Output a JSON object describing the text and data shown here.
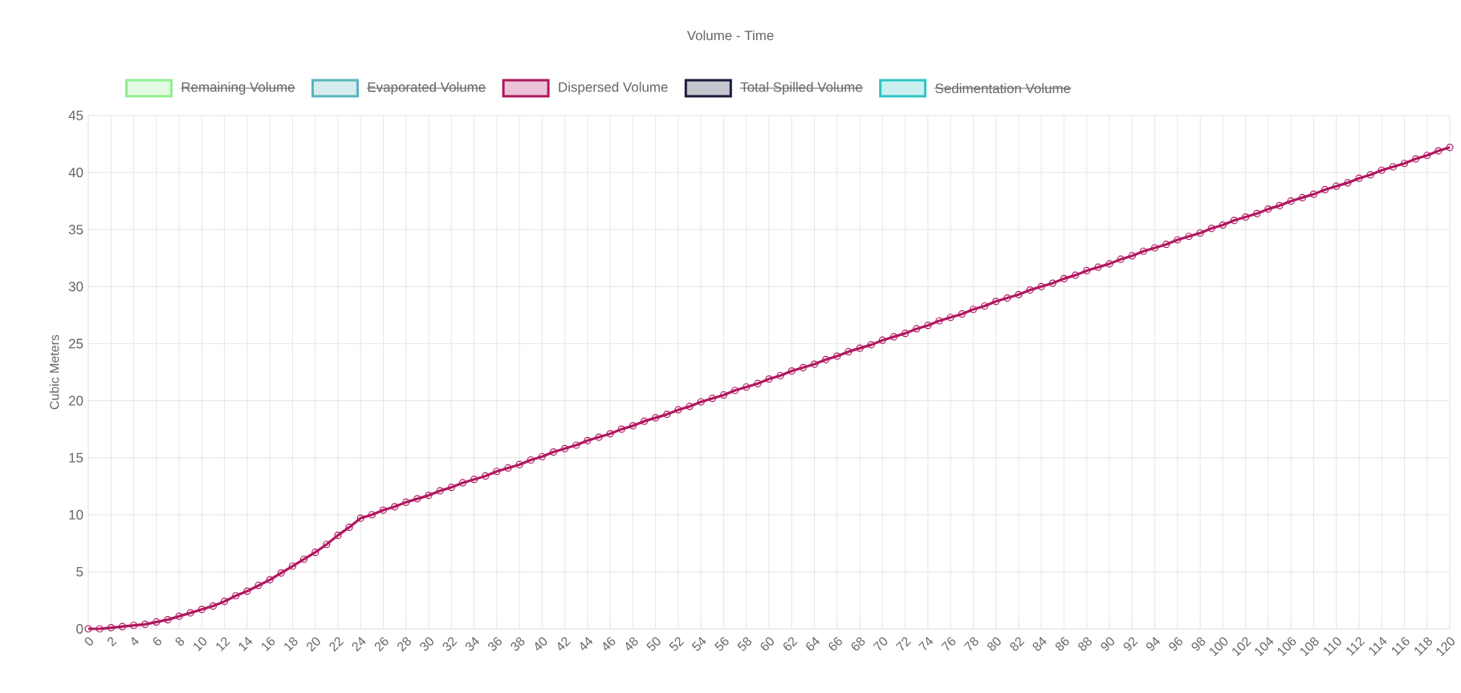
{
  "chart_data": {
    "type": "line",
    "title": "Volume - Time",
    "ylabel": "Cubic Meters",
    "x": [
      0,
      1,
      2,
      3,
      4,
      5,
      6,
      7,
      8,
      9,
      10,
      11,
      12,
      13,
      14,
      15,
      16,
      17,
      18,
      19,
      20,
      21,
      22,
      23,
      24,
      25,
      26,
      27,
      28,
      29,
      30,
      31,
      32,
      33,
      34,
      35,
      36,
      37,
      38,
      39,
      40,
      41,
      42,
      43,
      44,
      45,
      46,
      47,
      48,
      49,
      50,
      51,
      52,
      53,
      54,
      55,
      56,
      57,
      58,
      59,
      60,
      61,
      62,
      63,
      64,
      65,
      66,
      67,
      68,
      69,
      70,
      71,
      72,
      73,
      74,
      75,
      76,
      77,
      78,
      79,
      80,
      81,
      82,
      83,
      84,
      85,
      86,
      87,
      88,
      89,
      90,
      91,
      92,
      93,
      94,
      95,
      96,
      97,
      98,
      99,
      100,
      101,
      102,
      103,
      104,
      105,
      106,
      107,
      108,
      109,
      110,
      111,
      112,
      113,
      114,
      115,
      116,
      117,
      118,
      119,
      120
    ],
    "series": [
      {
        "name": "Remaining Volume",
        "color": "#90ee90",
        "values": [
          null,
          null,
          null,
          null,
          null,
          null,
          null,
          null,
          null,
          null,
          null,
          null,
          null,
          null,
          null,
          null,
          null,
          null,
          null,
          null,
          null,
          null,
          null,
          null,
          null,
          null,
          null,
          null,
          null,
          null,
          null,
          null,
          null,
          null,
          null,
          null,
          null,
          null,
          null,
          null,
          null,
          null,
          null,
          null,
          null,
          null,
          null,
          null,
          null,
          null,
          null,
          null,
          null,
          null,
          null,
          null,
          null,
          null,
          null,
          null,
          null,
          null,
          null,
          null,
          null,
          null,
          null,
          null,
          null,
          null,
          null,
          null,
          null,
          null,
          null,
          null,
          null,
          null,
          null,
          null,
          null,
          null,
          null,
          null,
          null,
          null,
          null,
          null,
          null,
          null,
          null,
          null,
          null,
          null,
          null,
          null,
          null,
          null,
          null,
          null,
          null,
          null,
          null,
          null,
          null,
          null,
          null,
          null,
          null,
          null,
          null,
          null,
          null,
          null,
          null,
          null,
          null,
          null,
          null,
          null,
          null
        ]
      },
      {
        "name": "Evaporated Volume",
        "color": "#5ab4bd",
        "values": [
          null,
          null,
          null,
          null,
          null,
          null,
          null,
          null,
          null,
          null,
          null,
          null,
          null,
          null,
          null,
          null,
          null,
          null,
          null,
          null,
          null,
          null,
          null,
          null,
          null,
          null,
          null,
          null,
          null,
          null,
          null,
          null,
          null,
          null,
          null,
          null,
          null,
          null,
          null,
          null,
          null,
          null,
          null,
          null,
          null,
          null,
          null,
          null,
          null,
          null,
          null,
          null,
          null,
          null,
          null,
          null,
          null,
          null,
          null,
          null,
          null,
          null,
          null,
          null,
          null,
          null,
          null,
          null,
          null,
          null,
          null,
          null,
          null,
          null,
          null,
          null,
          null,
          null,
          null,
          null,
          null,
          null,
          null,
          null,
          null,
          null,
          null,
          null,
          null,
          null,
          null,
          null,
          null,
          null,
          null,
          null,
          null,
          null,
          null,
          null,
          null,
          null,
          null,
          null,
          null,
          null,
          null,
          null,
          null,
          null,
          null,
          null,
          null,
          null,
          null,
          null,
          null,
          null,
          null,
          null,
          null
        ]
      },
      {
        "name": "Dispersed Volume",
        "color": "#b0175e",
        "values": [
          0,
          0.0,
          0.1,
          0.2,
          0.3,
          0.4,
          0.6,
          0.8,
          1.1,
          1.4,
          1.7,
          2.0,
          2.4,
          2.9,
          3.3,
          3.8,
          4.3,
          4.9,
          5.5,
          6.1,
          6.7,
          7.4,
          8.2,
          8.9,
          9.7,
          10.0,
          10.4,
          10.7,
          11.1,
          11.4,
          11.7,
          12.1,
          12.4,
          12.8,
          13.1,
          13.4,
          13.8,
          14.1,
          14.4,
          14.8,
          15.1,
          15.5,
          15.8,
          16.1,
          16.5,
          16.8,
          17.1,
          17.5,
          17.8,
          18.2,
          18.5,
          18.8,
          19.2,
          19.5,
          19.9,
          20.2,
          20.5,
          20.9,
          21.2,
          21.5,
          21.9,
          22.2,
          22.6,
          22.9,
          23.2,
          23.6,
          23.9,
          24.3,
          24.6,
          24.9,
          25.3,
          25.6,
          25.9,
          26.3,
          26.6,
          27.0,
          27.3,
          27.6,
          28.0,
          28.3,
          28.7,
          29.0,
          29.3,
          29.7,
          30.0,
          30.3,
          30.7,
          31.0,
          31.4,
          31.7,
          32.0,
          32.4,
          32.7,
          33.1,
          33.4,
          33.7,
          34.1,
          34.4,
          34.7,
          35.1,
          35.4,
          35.8,
          36.1,
          36.4,
          36.8,
          37.1,
          37.5,
          37.8,
          38.1,
          38.5,
          38.8,
          39.1,
          39.5,
          39.8,
          40.2,
          40.5,
          40.8,
          41.2,
          41.5,
          41.9,
          42.2
        ]
      },
      {
        "name": "Total Spilled Volume",
        "color": "#1b1b3f",
        "values": [
          null,
          null,
          null,
          null,
          null,
          null,
          null,
          null,
          null,
          null,
          null,
          null,
          null,
          null,
          null,
          null,
          null,
          null,
          null,
          null,
          null,
          null,
          null,
          null,
          null,
          null,
          null,
          null,
          null,
          null,
          null,
          null,
          null,
          null,
          null,
          null,
          null,
          null,
          null,
          null,
          null,
          null,
          null,
          null,
          null,
          null,
          null,
          null,
          null,
          null,
          null,
          null,
          null,
          null,
          null,
          null,
          null,
          null,
          null,
          null,
          null,
          null,
          null,
          null,
          null,
          null,
          null,
          null,
          null,
          null,
          null,
          null,
          null,
          null,
          null,
          null,
          null,
          null,
          null,
          null,
          null,
          null,
          null,
          null,
          null,
          null,
          null,
          null,
          null,
          null,
          null,
          null,
          null,
          null,
          null,
          null,
          null,
          null,
          null,
          null,
          null,
          null,
          null,
          null,
          null,
          null,
          null,
          null,
          null,
          null,
          null,
          null,
          null,
          null,
          null,
          null,
          null,
          null,
          null,
          null,
          null
        ]
      },
      {
        "name": "Sedimentation Volume",
        "color": "#2ec5c5",
        "values": [
          null,
          null,
          null,
          null,
          null,
          null,
          null,
          null,
          null,
          null,
          null,
          null,
          null,
          null,
          null,
          null,
          null,
          null,
          null,
          null,
          null,
          null,
          null,
          null,
          null,
          null,
          null,
          null,
          null,
          null,
          null,
          null,
          null,
          null,
          null,
          null,
          null,
          null,
          null,
          null,
          null,
          null,
          null,
          null,
          null,
          null,
          null,
          null,
          null,
          null,
          null,
          null,
          null,
          null,
          null,
          null,
          null,
          null,
          null,
          null,
          null,
          null,
          null,
          null,
          null,
          null,
          null,
          null,
          null,
          null,
          null,
          null,
          null,
          null,
          null,
          null,
          null,
          null,
          null,
          null,
          null,
          null,
          null,
          null,
          null,
          null,
          null,
          null,
          null,
          null,
          null,
          null,
          null,
          null,
          null,
          null,
          null,
          null,
          null,
          null,
          null,
          null,
          null,
          null,
          null,
          null,
          null,
          null,
          null,
          null,
          null,
          null,
          null,
          null,
          null,
          null,
          null,
          null,
          null,
          null,
          null
        ]
      }
    ],
    "xlim": [
      0,
      120
    ],
    "xticks": [
      0,
      2,
      4,
      6,
      8,
      10,
      12,
      14,
      16,
      18,
      20,
      22,
      24,
      26,
      28,
      30,
      32,
      34,
      36,
      38,
      40,
      42,
      44,
      46,
      48,
      50,
      52,
      54,
      56,
      58,
      60,
      62,
      64,
      66,
      68,
      70,
      72,
      74,
      76,
      78,
      80,
      82,
      84,
      86,
      88,
      90,
      92,
      94,
      96,
      98,
      100,
      102,
      104,
      106,
      108,
      110,
      112,
      114,
      116,
      118,
      120
    ],
    "ylim": [
      0,
      45
    ],
    "yticks": [
      0,
      5,
      10,
      15,
      20,
      25,
      30,
      35,
      40,
      45
    ],
    "grid": true,
    "legend": "top",
    "marker": "circle",
    "line_style": "solid"
  }
}
